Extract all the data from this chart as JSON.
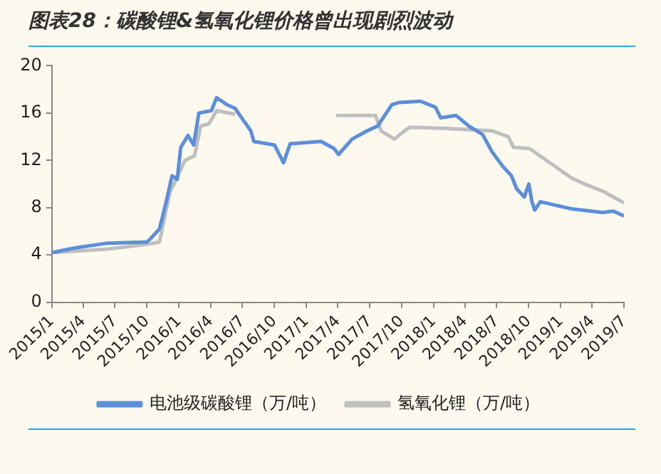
{
  "chart_data": {
    "type": "line",
    "title": "图表28：碳酸锂&氢氧化锂价格曾出现剧烈波动",
    "ylim": [
      0,
      20
    ],
    "yticks": [
      0,
      4,
      8,
      12,
      16,
      20
    ],
    "xlim": [
      "2015-01",
      "2019-07"
    ],
    "xticks": [
      {
        "value": "2015-01",
        "label": "2015/1"
      },
      {
        "value": "2015-04",
        "label": "2015/4"
      },
      {
        "value": "2015-07",
        "label": "2015/7"
      },
      {
        "value": "2015-10",
        "label": "2015/10"
      },
      {
        "value": "2016-01",
        "label": "2016/1"
      },
      {
        "value": "2016-04",
        "label": "2016/4"
      },
      {
        "value": "2016-07",
        "label": "2016/7"
      },
      {
        "value": "2016-10",
        "label": "2016/10"
      },
      {
        "value": "2017-01",
        "label": "2017/1"
      },
      {
        "value": "2017-04",
        "label": "2017/4"
      },
      {
        "value": "2017-07",
        "label": "2017/7"
      },
      {
        "value": "2017-10",
        "label": "2017/10"
      },
      {
        "value": "2018-01",
        "label": "2018/1"
      },
      {
        "value": "2018-04",
        "label": "2018/4"
      },
      {
        "value": "2018-07",
        "label": "2018/7"
      },
      {
        "value": "2018-10",
        "label": "2018/10"
      },
      {
        "value": "2019-01",
        "label": "2019/1"
      },
      {
        "value": "2019-04",
        "label": "2019/4"
      },
      {
        "value": "2019-07",
        "label": "2019/7"
      }
    ],
    "grid": false,
    "legend": "bottom",
    "marker": "none",
    "line_style": "solid",
    "series": [
      {
        "name": "电池级碳酸锂（万/吨）",
        "color": "#5b8fd9",
        "x": [
          "2015-01-01",
          "2015-03-10",
          "2015-06-10",
          "2015-10-01",
          "2015-10-12",
          "2015-11-06",
          "2015-11-27",
          "2015-12-12",
          "2015-12-27",
          "2016-01-06",
          "2016-01-27",
          "2016-02-12",
          "2016-02-27",
          "2016-04-03",
          "2016-04-18",
          "2016-05-18",
          "2016-06-10",
          "2016-07-01",
          "2016-07-25",
          "2016-08-03",
          "2016-10-01",
          "2016-10-27",
          "2016-11-15",
          "2017-02-12",
          "2017-03-21",
          "2017-04-03",
          "2017-05-12",
          "2017-06-24",
          "2017-07-24",
          "2017-09-03",
          "2017-09-24",
          "2017-11-24",
          "2018-01-06",
          "2018-01-21",
          "2018-03-06",
          "2018-04-12",
          "2018-05-21",
          "2018-06-18",
          "2018-07-18",
          "2018-08-12",
          "2018-08-27",
          "2018-09-18",
          "2018-10-01",
          "2018-10-10",
          "2018-10-18",
          "2018-11-03",
          "2019-02-01",
          "2019-05-01",
          "2019-06-01",
          "2019-07-01"
        ],
        "values": [
          4.2,
          4.6,
          5.0,
          5.1,
          5.4,
          6.2,
          8.7,
          10.7,
          10.4,
          13.1,
          14.1,
          13.3,
          16.0,
          16.2,
          17.3,
          16.7,
          16.4,
          15.5,
          14.5,
          13.6,
          13.3,
          11.8,
          13.4,
          13.6,
          13.0,
          12.5,
          13.8,
          14.5,
          14.9,
          16.7,
          16.9,
          17.0,
          16.5,
          15.6,
          15.8,
          14.9,
          14.2,
          12.7,
          11.5,
          10.7,
          9.6,
          8.9,
          10.0,
          8.5,
          7.8,
          8.5,
          7.9,
          7.6,
          7.7,
          7.3
        ]
      },
      {
        "name": "氢氧化锂（万/吨）",
        "color": "#bfbfbf",
        "x": [
          "2015-01-01",
          "2015-06-10",
          "2015-10-01",
          "2015-11-06",
          "2015-12-06",
          "2016-01-18",
          "2016-02-15",
          "2016-03-03",
          "2016-03-27",
          "2016-04-18",
          "2016-06-10",
          "2016-12-01",
          "2017-03-27",
          "2017-07-18",
          "2017-08-03",
          "2017-09-10",
          "2017-10-01",
          "2017-10-24",
          "2018-02-06",
          "2018-06-18",
          "2018-08-03",
          "2018-08-18",
          "2018-10-03",
          "2019-02-01",
          "2019-03-10",
          "2019-05-01",
          "2019-07-01"
        ],
        "values": [
          4.2,
          4.5,
          4.9,
          5.1,
          9.3,
          12.0,
          12.4,
          14.9,
          15.1,
          16.2,
          15.9,
          null,
          15.8,
          15.8,
          14.5,
          13.8,
          14.3,
          14.8,
          14.7,
          14.5,
          14.0,
          13.1,
          13.0,
          10.5,
          10.0,
          9.4,
          8.4
        ]
      }
    ]
  }
}
